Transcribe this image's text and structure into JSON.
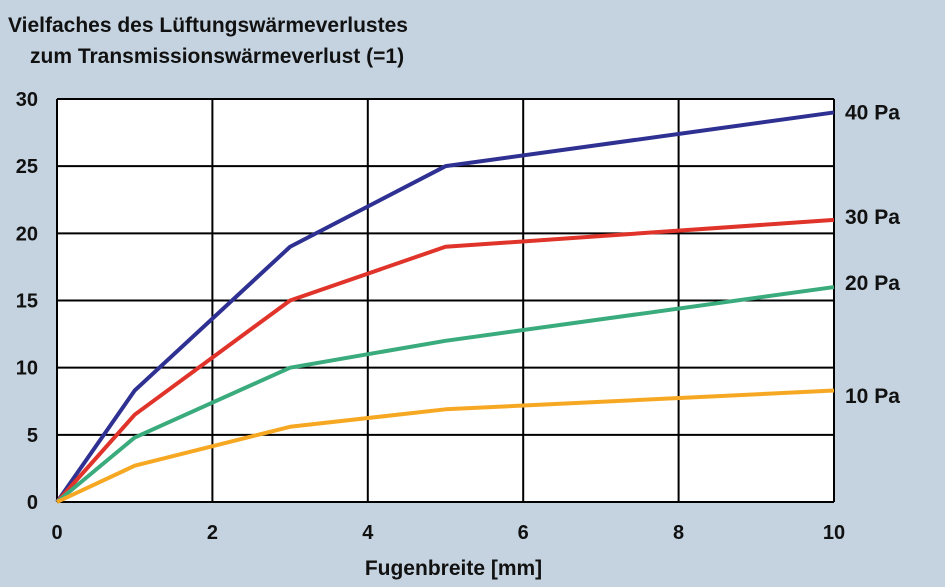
{
  "title_line1": "Vielfaches des Lüftungswärmeverlustes",
  "title_line2": "zum Transmissionswärmeverlust (=1)",
  "chart_data": {
    "type": "line",
    "xlabel": "Fugenbreite [mm]",
    "ylabel": "",
    "xlim": [
      0,
      10
    ],
    "ylim": [
      0,
      30
    ],
    "xticks": [
      0,
      2,
      4,
      6,
      8,
      10
    ],
    "yticks": [
      0,
      5,
      10,
      15,
      20,
      25,
      30
    ],
    "grid": true,
    "legend": "right, labels at line ends",
    "series": [
      {
        "name": "40 Pa",
        "color": "#2e3192",
        "x": [
          0,
          1,
          3,
          5,
          10
        ],
        "y": [
          0,
          8.3,
          19,
          25,
          29
        ]
      },
      {
        "name": "30 Pa",
        "color": "#e0332a",
        "x": [
          0,
          1,
          3,
          5,
          10
        ],
        "y": [
          0,
          6.5,
          15,
          19,
          21
        ]
      },
      {
        "name": "20 Pa",
        "color": "#3aab7c",
        "x": [
          0,
          1,
          3,
          5,
          10
        ],
        "y": [
          0,
          4.8,
          10,
          12,
          16
        ]
      },
      {
        "name": "10 Pa",
        "color": "#f7a823",
        "x": [
          0,
          1,
          3,
          5,
          10
        ],
        "y": [
          0,
          2.7,
          5.6,
          6.9,
          8.3
        ]
      }
    ]
  }
}
